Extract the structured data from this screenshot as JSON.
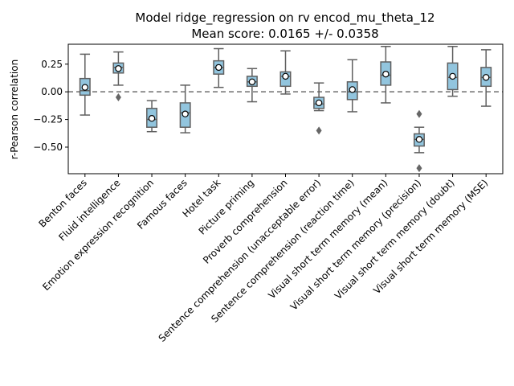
{
  "chart_data": {
    "type": "box",
    "title_line1": "Model ridge_regression on rv encod_mu_theta_12",
    "title_line2": "Mean score: 0.0165 +/- 0.0358",
    "xlabel": "",
    "ylabel": "r-Pearson correlation",
    "ylim": [
      -0.74,
      0.43
    ],
    "yticks": [
      0.25,
      0.0,
      -0.25,
      -0.5
    ],
    "ytick_labels": [
      "0.25",
      "0.00",
      "−0.25",
      "−0.50"
    ],
    "reference_line": 0.0,
    "box_color": "#92c5de",
    "categories": [
      "Benton faces",
      "Fluid intelligence",
      "Emotion expression recognition",
      "Famous faces",
      "Hotel task",
      "Picture priming",
      "Proverb comprehension",
      "Sentence comprehension (unacceptable error)",
      "Sentence comprehension (reaction time)",
      "Visual short term memory (mean)",
      "Visual short term memory (precision)",
      "Visual short term memory (doubt)",
      "Visual short term memory (MSE)"
    ],
    "boxes": [
      {
        "whislo": -0.21,
        "q1": -0.03,
        "med": 0.01,
        "q3": 0.12,
        "whishi": 0.34,
        "mean": 0.04,
        "fliers": []
      },
      {
        "whislo": 0.06,
        "q1": 0.17,
        "med": 0.22,
        "q3": 0.26,
        "whishi": 0.36,
        "mean": 0.21,
        "fliers": [
          -0.05
        ]
      },
      {
        "whislo": -0.36,
        "q1": -0.32,
        "med": -0.25,
        "q3": -0.15,
        "whishi": -0.08,
        "mean": -0.24,
        "fliers": []
      },
      {
        "whislo": -0.37,
        "q1": -0.32,
        "med": -0.19,
        "q3": -0.1,
        "whishi": 0.06,
        "mean": -0.2,
        "fliers": []
      },
      {
        "whislo": 0.04,
        "q1": 0.16,
        "med": 0.22,
        "q3": 0.28,
        "whishi": 0.39,
        "mean": 0.22,
        "fliers": []
      },
      {
        "whislo": -0.09,
        "q1": 0.05,
        "med": 0.09,
        "q3": 0.14,
        "whishi": 0.21,
        "mean": 0.09,
        "fliers": []
      },
      {
        "whislo": -0.02,
        "q1": 0.05,
        "med": 0.14,
        "q3": 0.18,
        "whishi": 0.37,
        "mean": 0.14,
        "fliers": []
      },
      {
        "whislo": -0.17,
        "q1": -0.15,
        "med": -0.11,
        "q3": -0.05,
        "whishi": 0.08,
        "mean": -0.1,
        "fliers": [
          -0.35
        ]
      },
      {
        "whislo": -0.18,
        "q1": -0.07,
        "med": 0.0,
        "q3": 0.09,
        "whishi": 0.29,
        "mean": 0.02,
        "fliers": []
      },
      {
        "whislo": -0.1,
        "q1": 0.06,
        "med": 0.15,
        "q3": 0.27,
        "whishi": 0.41,
        "mean": 0.16,
        "fliers": []
      },
      {
        "whislo": -0.55,
        "q1": -0.49,
        "med": -0.43,
        "q3": -0.38,
        "whishi": -0.32,
        "mean": -0.43,
        "fliers": [
          -0.2,
          -0.69
        ]
      },
      {
        "whislo": -0.04,
        "q1": 0.02,
        "med": 0.13,
        "q3": 0.26,
        "whishi": 0.41,
        "mean": 0.14,
        "fliers": []
      },
      {
        "whislo": -0.13,
        "q1": 0.05,
        "med": 0.13,
        "q3": 0.22,
        "whishi": 0.38,
        "mean": 0.13,
        "fliers": []
      }
    ]
  }
}
